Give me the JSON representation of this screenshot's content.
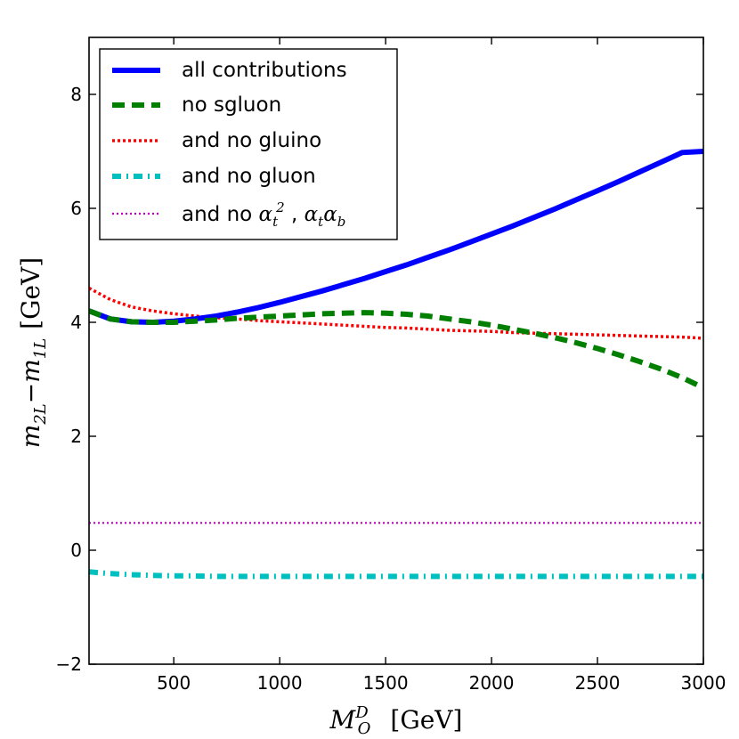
{
  "chart_data": {
    "type": "line",
    "title": "",
    "xlabel": {
      "base": "M",
      "sub": "O",
      "sup": "D",
      "units": "[GeV]"
    },
    "ylabel": {
      "a": "m",
      "a_sub": "2L",
      "minus": "−",
      "b": "m",
      "b_sub": "1L",
      "units": "[GeV]"
    },
    "xlim": [
      100,
      3000
    ],
    "ylim": [
      -2,
      9
    ],
    "xticks": [
      500,
      1000,
      1500,
      2000,
      2500,
      3000
    ],
    "xtick_labels": [
      "500",
      "1000",
      "1500",
      "2000",
      "2500",
      "3000"
    ],
    "yticks": [
      -2,
      0,
      2,
      4,
      6,
      8
    ],
    "ytick_labels": [
      "−2",
      "0",
      "2",
      "4",
      "6",
      "8"
    ],
    "legend_position": "top-left",
    "x": [
      100,
      200,
      300,
      400,
      500,
      600,
      700,
      800,
      900,
      1000,
      1100,
      1200,
      1300,
      1400,
      1500,
      1600,
      1700,
      1800,
      1900,
      2000,
      2100,
      2200,
      2300,
      2400,
      2500,
      2600,
      2700,
      2800,
      2900,
      3000
    ],
    "series": [
      {
        "name": "all contributions",
        "label": "all contributions",
        "color": "#0000ff",
        "style": "solid",
        "values": [
          4.2,
          4.06,
          4.01,
          4.0,
          4.02,
          4.06,
          4.11,
          4.18,
          4.26,
          4.35,
          4.45,
          4.55,
          4.66,
          4.77,
          4.89,
          5.01,
          5.14,
          5.27,
          5.41,
          5.55,
          5.69,
          5.84,
          5.99,
          6.15,
          6.31,
          6.47,
          6.64,
          6.81,
          6.98,
          7.0
        ]
      },
      {
        "name": "no sgluon",
        "label": "no sgluon",
        "color": "#007f00",
        "style": "dashed",
        "values": [
          4.2,
          4.06,
          4.01,
          4.0,
          4.0,
          4.02,
          4.04,
          4.07,
          4.09,
          4.11,
          4.13,
          4.15,
          4.16,
          4.17,
          4.16,
          4.14,
          4.11,
          4.06,
          4.01,
          3.95,
          3.88,
          3.81,
          3.73,
          3.64,
          3.54,
          3.43,
          3.31,
          3.18,
          3.03,
          2.85
        ]
      },
      {
        "name": "and no gluino",
        "label": "and no gluino",
        "color": "#ff0000",
        "style": "dotted",
        "values": [
          4.6,
          4.4,
          4.27,
          4.2,
          4.15,
          4.11,
          4.08,
          4.06,
          4.03,
          4.01,
          3.99,
          3.97,
          3.95,
          3.93,
          3.91,
          3.9,
          3.88,
          3.86,
          3.85,
          3.84,
          3.82,
          3.81,
          3.8,
          3.79,
          3.78,
          3.77,
          3.76,
          3.75,
          3.74,
          3.72
        ]
      },
      {
        "name": "and no gluon",
        "label": "and no gluon",
        "color": "#00bfbf",
        "style": "dashdot",
        "values": [
          -0.38,
          -0.41,
          -0.43,
          -0.44,
          -0.45,
          -0.45,
          -0.46,
          -0.46,
          -0.46,
          -0.46,
          -0.46,
          -0.46,
          -0.46,
          -0.46,
          -0.46,
          -0.46,
          -0.46,
          -0.46,
          -0.46,
          -0.46,
          -0.46,
          -0.46,
          -0.46,
          -0.46,
          -0.46,
          -0.46,
          -0.46,
          -0.46,
          -0.46,
          -0.46
        ]
      },
      {
        "name": "and no alpha_t^2, alpha_t alpha_b",
        "label": "and no α_t², α_t α_b",
        "label_prefix": "and no ",
        "label_math": {
          "a": "α",
          "a_sub": "t",
          "a_sup": "2",
          "sep": " , ",
          "b1": "α",
          "b1_sub": "t",
          "b2": "α",
          "b2_sub": "b"
        },
        "color": "#bf00bf",
        "style": "finedotted",
        "values": [
          0.48,
          0.48,
          0.48,
          0.48,
          0.48,
          0.48,
          0.48,
          0.48,
          0.48,
          0.48,
          0.48,
          0.48,
          0.48,
          0.48,
          0.48,
          0.48,
          0.48,
          0.48,
          0.48,
          0.48,
          0.48,
          0.48,
          0.48,
          0.48,
          0.48,
          0.48,
          0.48,
          0.48,
          0.48,
          0.48
        ]
      }
    ]
  }
}
